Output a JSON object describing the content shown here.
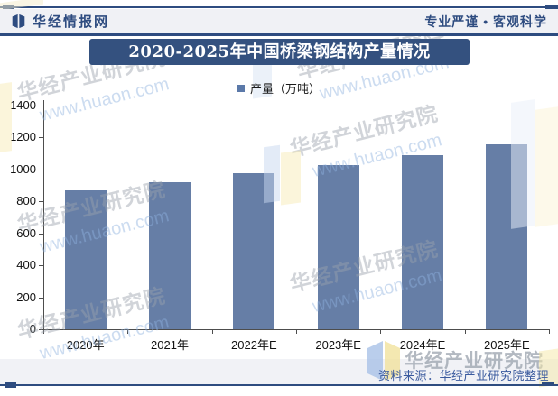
{
  "header": {
    "logo_text": "华经情报网",
    "tagline": "专业严谨 • 客观科学"
  },
  "chart_data": {
    "type": "bar",
    "title": "2020-2025年中国桥梁钢结构产量情况",
    "legend": [
      "产量（万吨）"
    ],
    "legend_position": "top",
    "categories": [
      "2020年",
      "2021年",
      "2022年E",
      "2023年E",
      "2024年E",
      "2025年E"
    ],
    "values": [
      870,
      920,
      975,
      1030,
      1090,
      1155
    ],
    "ylabel": "",
    "xlabel": "",
    "ylim": [
      0,
      1400
    ],
    "ytick_step": 200,
    "grid": false,
    "bar_color": "#667EA6"
  },
  "watermark": {
    "line1": "华经产业研究院",
    "line2": "www.huaon.com"
  },
  "footer": {
    "source": "资料来源：华经产业研究院整理",
    "brand_watermark": "华经产业研究院"
  },
  "colors": {
    "brand_blue": "#2E4C80",
    "banner_blue": "#34517F",
    "bar_blue": "#667EA6",
    "legend_blue": "#5B79A9",
    "band_gray": "#F1F2F6",
    "source_blue": "#3A5A9E"
  }
}
